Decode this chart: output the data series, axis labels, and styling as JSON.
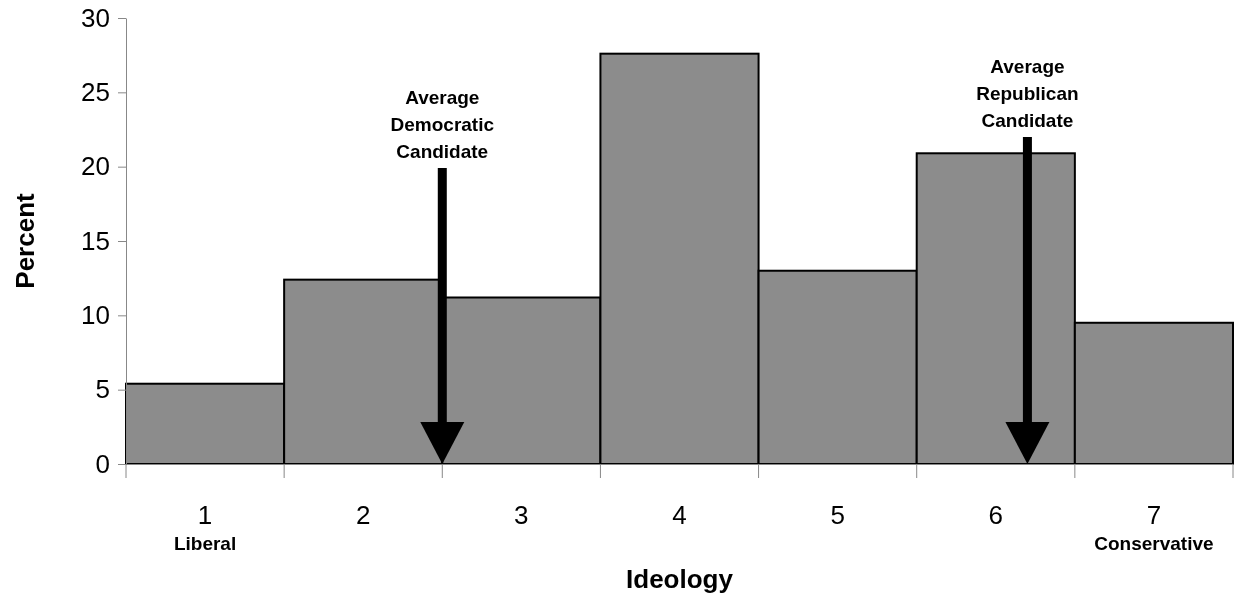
{
  "chart_data": {
    "type": "bar",
    "xlabel": "Ideology",
    "ylabel": "Percent",
    "categories": [
      "1",
      "2",
      "3",
      "4",
      "5",
      "6",
      "7"
    ],
    "values": [
      5.4,
      12.4,
      11.2,
      27.6,
      13.0,
      20.9,
      9.5
    ],
    "color": "#8c8c8c",
    "ylim": [
      0,
      30
    ],
    "yticks": [
      0,
      5,
      10,
      15,
      20,
      25,
      30
    ],
    "annotations": [
      "Average Democratic Candidate",
      "Average Republican Candidate",
      "Liberal",
      "Conservative"
    ]
  }
}
